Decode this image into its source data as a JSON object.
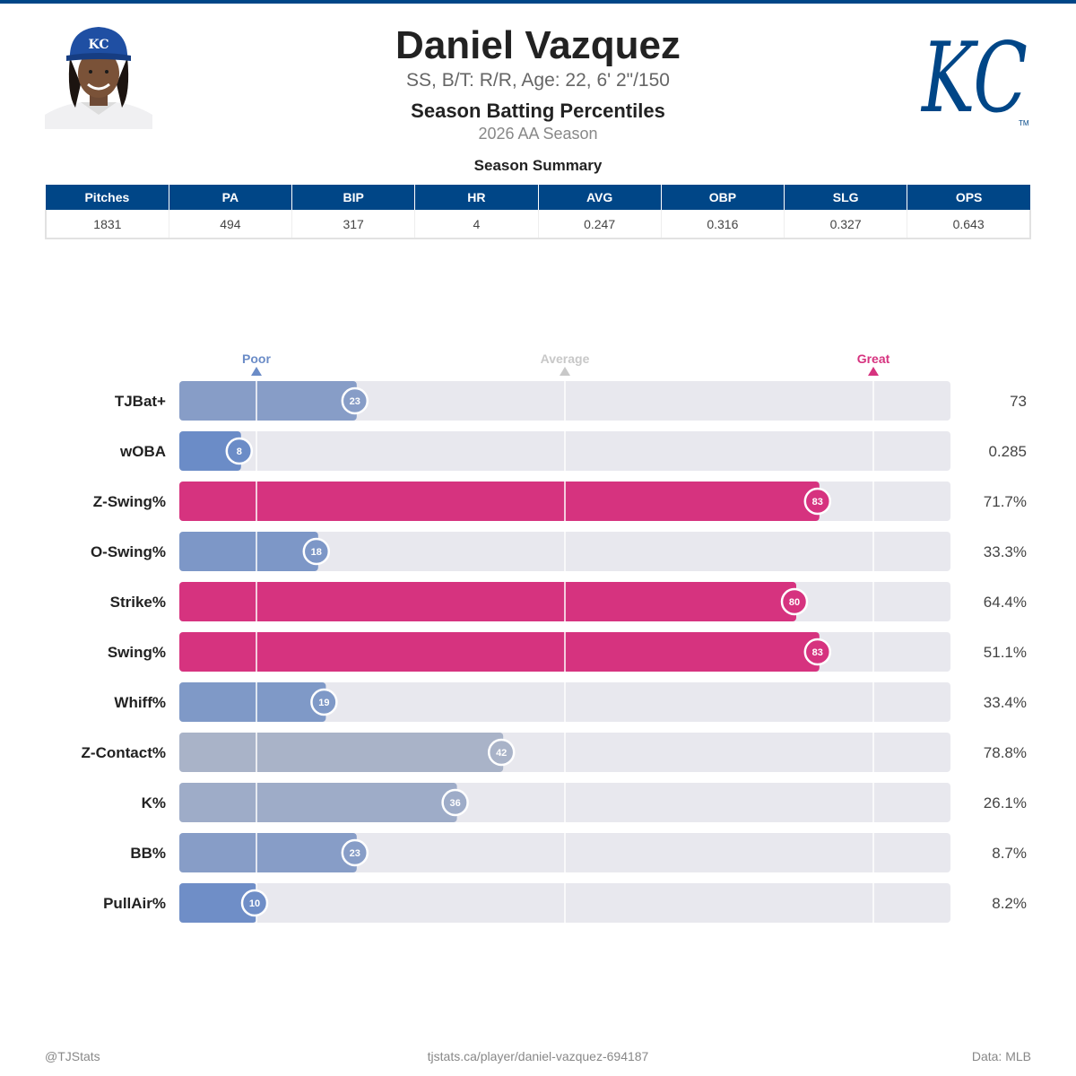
{
  "header": {
    "player_name": "Daniel Vazquez",
    "bio_line": "SS, B/T: R/R, Age: 22, 6' 2\"/150",
    "chart_title": "Season Batting Percentiles",
    "season_label": "2026 AA Season",
    "team_logo_text": "KC"
  },
  "summary": {
    "title": "Season Summary",
    "columns": [
      "Pitches",
      "PA",
      "BIP",
      "HR",
      "AVG",
      "OBP",
      "SLG",
      "OPS"
    ],
    "values": [
      "1831",
      "494",
      "317",
      "4",
      "0.247",
      "0.316",
      "0.327",
      "0.643"
    ]
  },
  "chart_data": {
    "type": "bar",
    "orientation": "horizontal",
    "title": "Season Batting Percentiles",
    "scale": {
      "min": 0,
      "max": 100
    },
    "reference_markers": [
      {
        "label": "Poor",
        "value": 10,
        "color": "#6b8cc7"
      },
      {
        "label": "Average",
        "value": 50,
        "color": "#c8c8c8"
      },
      {
        "label": "Great",
        "value": 90,
        "color": "#d6337f"
      }
    ],
    "categories": [
      "TJBat+",
      "wOBA",
      "Z-Swing%",
      "O-Swing%",
      "Strike%",
      "Swing%",
      "Whiff%",
      "Z-Contact%",
      "K%",
      "BB%",
      "PullAir%"
    ],
    "percentiles": [
      23,
      8,
      83,
      18,
      80,
      83,
      19,
      42,
      36,
      23,
      10
    ],
    "stat_values": [
      "73",
      "0.285",
      "71.7%",
      "33.3%",
      "64.4%",
      "51.1%",
      "33.4%",
      "78.8%",
      "26.1%",
      "8.7%",
      "8.2%"
    ]
  },
  "footer": {
    "left": "@TJStats",
    "center": "tjstats.ca/player/daniel-vazquez-694187",
    "right": "Data: MLB"
  },
  "colors": {
    "team_blue": "#004687",
    "poor": "#6b8cc7",
    "average": "#c8c8c8",
    "great": "#d6337f",
    "track": "#e8e8ee"
  }
}
